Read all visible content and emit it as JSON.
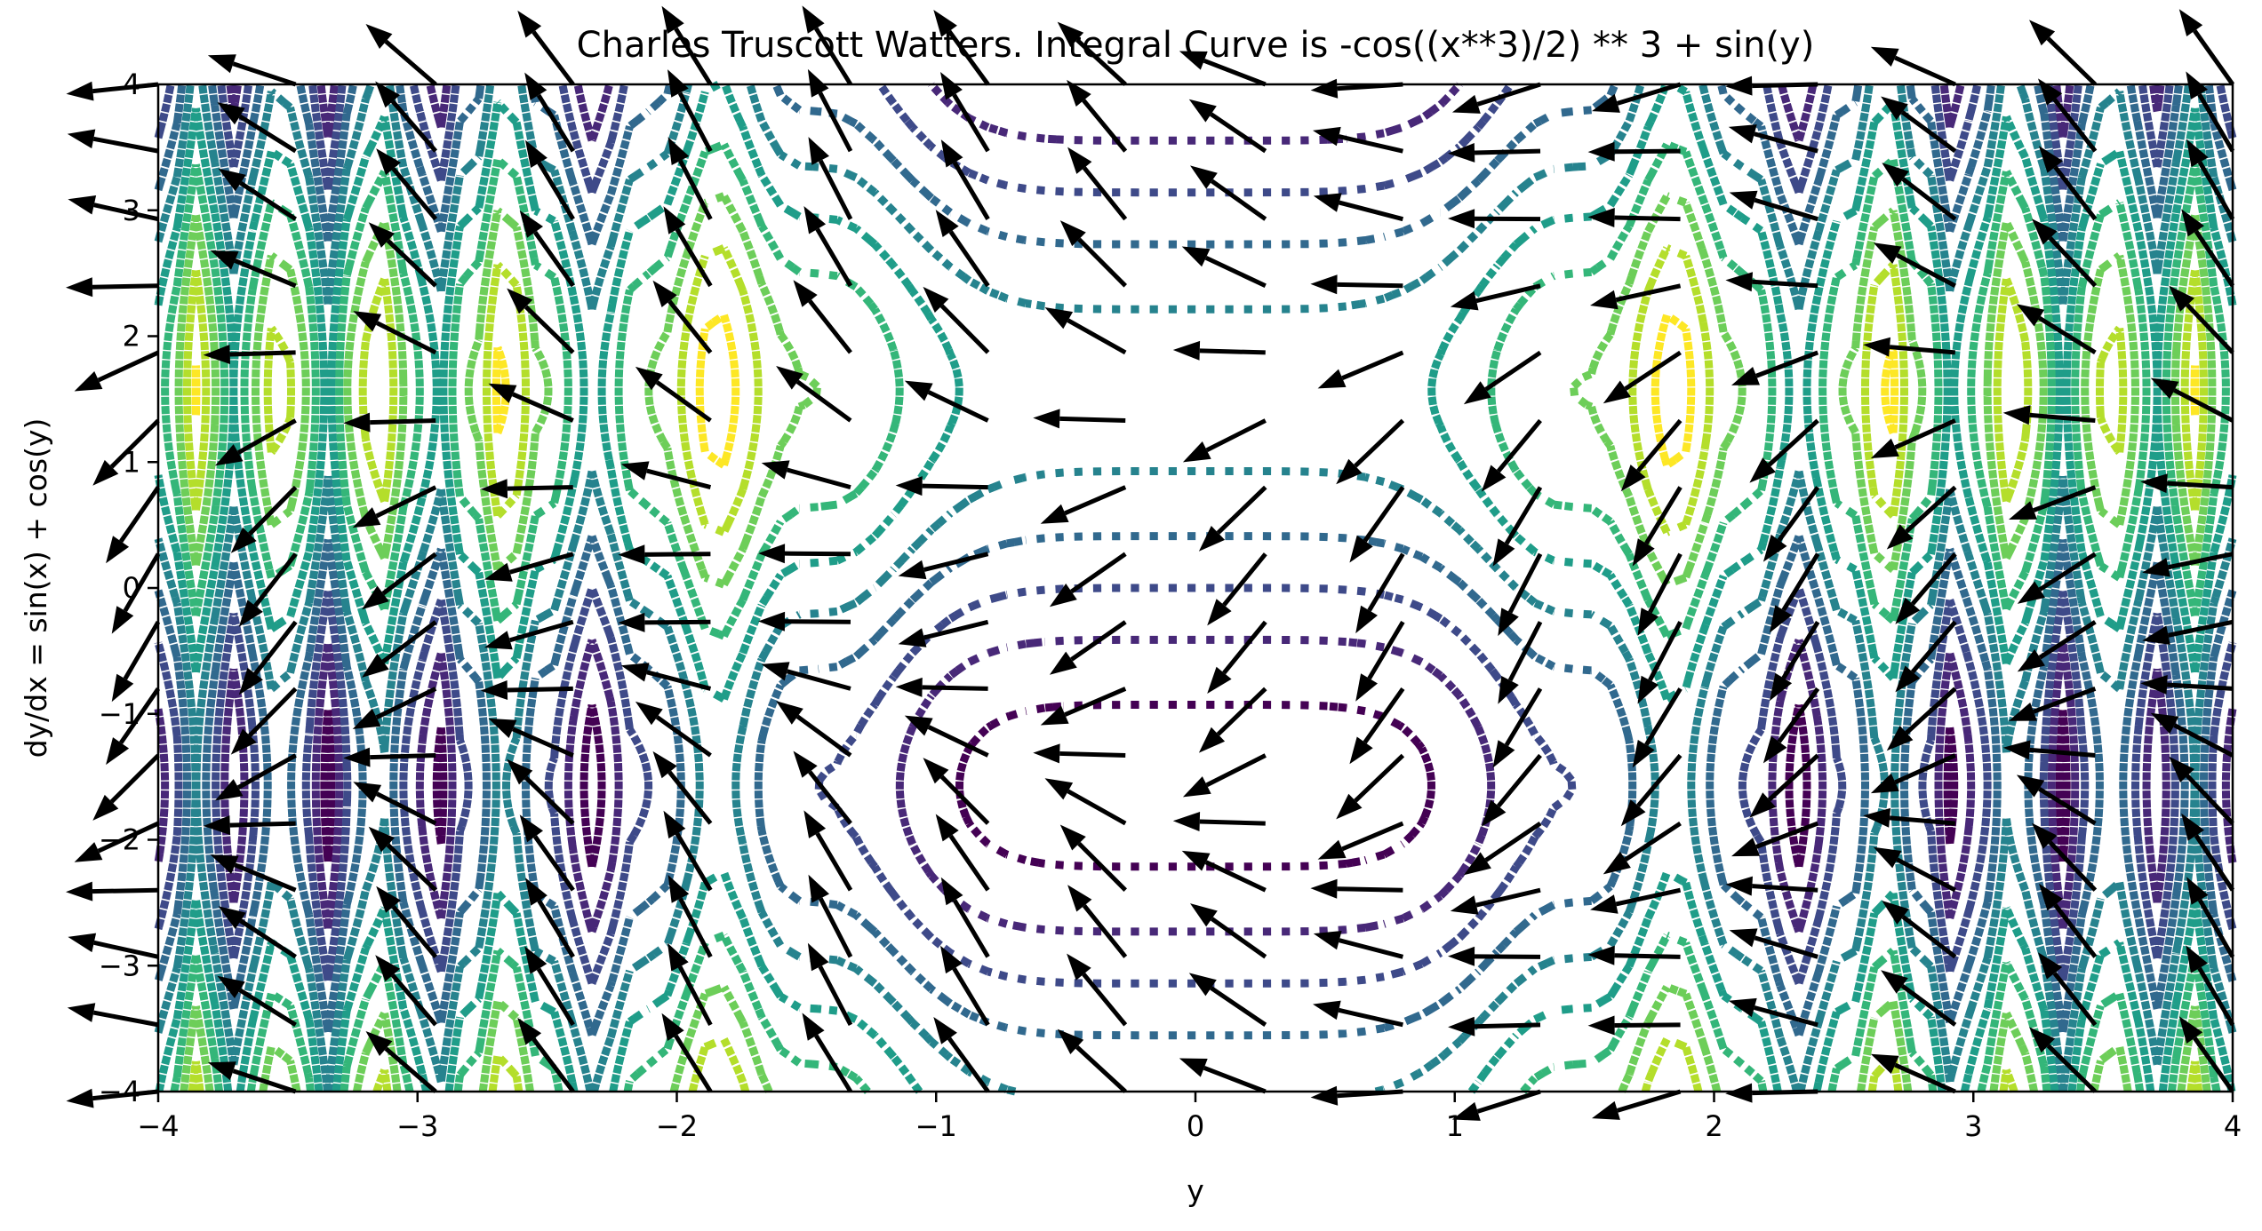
{
  "chart_data": {
    "type": "quiver+contour",
    "title": "Charles Truscott Watters. Integral Curve is -cos((x**3)/2) ** 3 + sin(y)",
    "xlabel": "y",
    "ylabel": "dy/dx = sin(x) + cos(y)",
    "xlim": [
      -4,
      4
    ],
    "ylim": [
      -4,
      4
    ],
    "x_ticks": [
      -4,
      -3,
      -2,
      -1,
      0,
      1,
      2,
      3,
      4
    ],
    "y_ticks": [
      -4,
      -3,
      -2,
      -1,
      0,
      1,
      2,
      3,
      4
    ],
    "x_tick_labels": [
      "−4",
      "−3",
      "−2",
      "−1",
      "0",
      "1",
      "2",
      "3",
      "4"
    ],
    "y_tick_labels": [
      "−4",
      "−3",
      "−2",
      "−1",
      "0",
      "1",
      "2",
      "3",
      "4"
    ],
    "grid": false,
    "quiver": {
      "field": "direction (1, sin(x) + cos(y)) with x = horizontal axis value, y = vertical axis value, reversed; normalized",
      "x": [
        -4.0,
        -3.47,
        -2.93,
        -2.4,
        -1.87,
        -1.33,
        -0.8,
        -0.27,
        0.27,
        0.8,
        1.33,
        1.87,
        2.4,
        2.93,
        3.47,
        4.0
      ],
      "y": [
        -4.0,
        -3.47,
        -2.93,
        -2.4,
        -1.87,
        -1.33,
        -0.8,
        -0.27,
        0.27,
        0.8,
        1.33,
        1.87,
        2.4,
        2.93,
        3.47,
        4.0
      ],
      "color": "#000000"
    },
    "contour": {
      "function": "-cos((x**3)/2) ** 3 + sin(y)",
      "levels": [
        -1.8,
        -1.4,
        -1.0,
        -0.6,
        -0.2,
        0.2,
        0.6,
        1.0,
        1.4,
        1.8
      ],
      "colormap": "viridis",
      "linestyle": "dotted"
    }
  }
}
